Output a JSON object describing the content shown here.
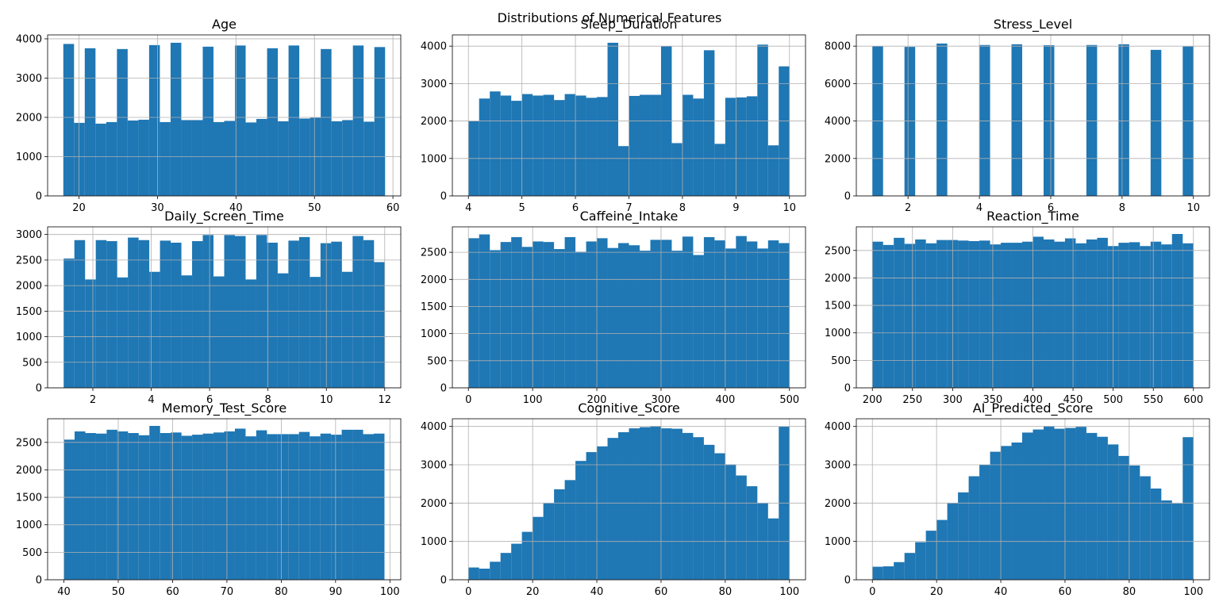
{
  "figure": {
    "suptitle": "Distributions of Numerical Features"
  },
  "colors": {
    "bar": "#1f77b4",
    "grid": "#b0b0b0"
  },
  "chart_data": [
    {
      "type": "bar",
      "title": "Age",
      "xlim": [
        16,
        61
      ],
      "ylim": [
        0,
        4100
      ],
      "xticks": [
        20,
        30,
        40,
        50,
        60
      ],
      "yticks": [
        0,
        1000,
        2000,
        3000,
        4000
      ],
      "bin_range": [
        18,
        59
      ],
      "values": [
        3870,
        1860,
        3760,
        1840,
        1880,
        3740,
        1920,
        1940,
        3840,
        1880,
        3900,
        1930,
        1930,
        3800,
        1880,
        1910,
        3830,
        1870,
        1960,
        3760,
        1900,
        3830,
        1970,
        1990,
        3740,
        1900,
        1930,
        3830,
        1890,
        3790
      ]
    },
    {
      "type": "bar",
      "title": "Sleep_Duration",
      "xlim": [
        3.7,
        10.3
      ],
      "ylim": [
        0,
        4300
      ],
      "xticks": [
        4,
        5,
        6,
        7,
        8,
        9,
        10
      ],
      "yticks": [
        0,
        1000,
        2000,
        3000,
        4000
      ],
      "bin_range": [
        4,
        10
      ],
      "values": [
        2000,
        2600,
        2790,
        2680,
        2540,
        2720,
        2680,
        2700,
        2560,
        2720,
        2680,
        2620,
        2640,
        4090,
        1330,
        2670,
        2700,
        2700,
        4000,
        1410,
        2700,
        2600,
        3890,
        1390,
        2620,
        2630,
        2660,
        4040,
        1350,
        3460
      ]
    },
    {
      "type": "bar",
      "title": "Stress_Level",
      "xlim": [
        0.55,
        10.45
      ],
      "ylim": [
        0,
        8600
      ],
      "xticks": [
        2,
        4,
        6,
        8,
        10
      ],
      "yticks": [
        0,
        2000,
        4000,
        6000,
        8000
      ],
      "bin_range": [
        1,
        10
      ],
      "values": [
        8000,
        0,
        0,
        7960,
        0,
        0,
        8140,
        0,
        0,
        0,
        8060,
        0,
        0,
        8100,
        0,
        0,
        8050,
        0,
        0,
        0,
        8060,
        0,
        0,
        8100,
        0,
        0,
        7800,
        0,
        0,
        7980
      ]
    },
    {
      "type": "bar",
      "title": "Daily_Screen_Time",
      "xlim": [
        0.45,
        12.55
      ],
      "ylim": [
        0,
        3150
      ],
      "xticks": [
        2,
        4,
        6,
        8,
        10,
        12
      ],
      "yticks": [
        0,
        500,
        1000,
        1500,
        2000,
        2500,
        3000
      ],
      "bin_range": [
        1,
        12
      ],
      "values": [
        2530,
        2890,
        2120,
        2890,
        2870,
        2160,
        2940,
        2890,
        2270,
        2880,
        2840,
        2200,
        2870,
        2990,
        2180,
        2990,
        2970,
        2120,
        2990,
        2840,
        2240,
        2880,
        2950,
        2170,
        2830,
        2860,
        2270,
        2970,
        2890,
        2460
      ]
    },
    {
      "type": "bar",
      "title": "Caffeine_Intake",
      "xlim": [
        -25,
        525
      ],
      "ylim": [
        0,
        2970
      ],
      "xticks": [
        0,
        100,
        200,
        300,
        400,
        500
      ],
      "yticks": [
        0,
        500,
        1000,
        1500,
        2000,
        2500
      ],
      "bin_range": [
        0,
        500
      ],
      "values": [
        2760,
        2830,
        2540,
        2690,
        2780,
        2600,
        2700,
        2690,
        2560,
        2780,
        2510,
        2700,
        2760,
        2580,
        2670,
        2630,
        2530,
        2730,
        2730,
        2530,
        2790,
        2450,
        2780,
        2720,
        2570,
        2800,
        2700,
        2570,
        2720,
        2670
      ]
    },
    {
      "type": "bar",
      "title": "Reaction_Time",
      "xlim": [
        180,
        620
      ],
      "ylim": [
        0,
        2930
      ],
      "xticks": [
        200,
        250,
        300,
        350,
        400,
        450,
        500,
        550,
        600
      ],
      "yticks": [
        0,
        500,
        1000,
        1500,
        2000,
        2500
      ],
      "bin_range": [
        200,
        600
      ],
      "values": [
        2660,
        2600,
        2730,
        2620,
        2700,
        2630,
        2690,
        2690,
        2680,
        2670,
        2680,
        2610,
        2640,
        2640,
        2660,
        2750,
        2700,
        2660,
        2720,
        2630,
        2700,
        2730,
        2580,
        2640,
        2650,
        2580,
        2660,
        2610,
        2800,
        2630
      ]
    },
    {
      "type": "bar",
      "title": "Memory_Test_Score",
      "xlim": [
        37,
        102
      ],
      "ylim": [
        0,
        2930
      ],
      "xticks": [
        40,
        50,
        60,
        70,
        80,
        90,
        100
      ],
      "yticks": [
        0,
        500,
        1000,
        1500,
        2000,
        2500
      ],
      "bin_range": [
        40,
        99
      ],
      "values": [
        2550,
        2700,
        2670,
        2660,
        2730,
        2700,
        2670,
        2630,
        2800,
        2670,
        2680,
        2620,
        2640,
        2660,
        2680,
        2700,
        2750,
        2610,
        2720,
        2650,
        2650,
        2650,
        2690,
        2610,
        2660,
        2640,
        2730,
        2730,
        2650,
        2660
      ]
    },
    {
      "type": "bar",
      "title": "Cognitive_Score",
      "xlim": [
        -5,
        105
      ],
      "ylim": [
        0,
        4200
      ],
      "xticks": [
        0,
        20,
        40,
        60,
        80,
        100
      ],
      "yticks": [
        0,
        1000,
        2000,
        3000,
        4000
      ],
      "bin_range": [
        0,
        100
      ],
      "values": [
        320,
        290,
        470,
        700,
        940,
        1250,
        1640,
        2000,
        2360,
        2600,
        3100,
        3330,
        3480,
        3700,
        3850,
        3950,
        3980,
        4010,
        3950,
        3940,
        3830,
        3720,
        3520,
        3300,
        3010,
        2720,
        2440,
        2000,
        1600,
        4000
      ]
    },
    {
      "type": "bar",
      "title": "AI_Predicted_Score",
      "xlim": [
        -5,
        105
      ],
      "ylim": [
        0,
        4200
      ],
      "xticks": [
        0,
        20,
        40,
        60,
        80,
        100
      ],
      "yticks": [
        0,
        1000,
        2000,
        3000,
        4000
      ],
      "bin_range": [
        0,
        100
      ],
      "values": [
        340,
        350,
        460,
        700,
        980,
        1280,
        1560,
        2000,
        2280,
        2700,
        3000,
        3340,
        3490,
        3580,
        3840,
        3920,
        4010,
        3940,
        3960,
        3990,
        3830,
        3730,
        3530,
        3230,
        2980,
        2700,
        2380,
        2070,
        1990,
        3720
      ]
    }
  ]
}
